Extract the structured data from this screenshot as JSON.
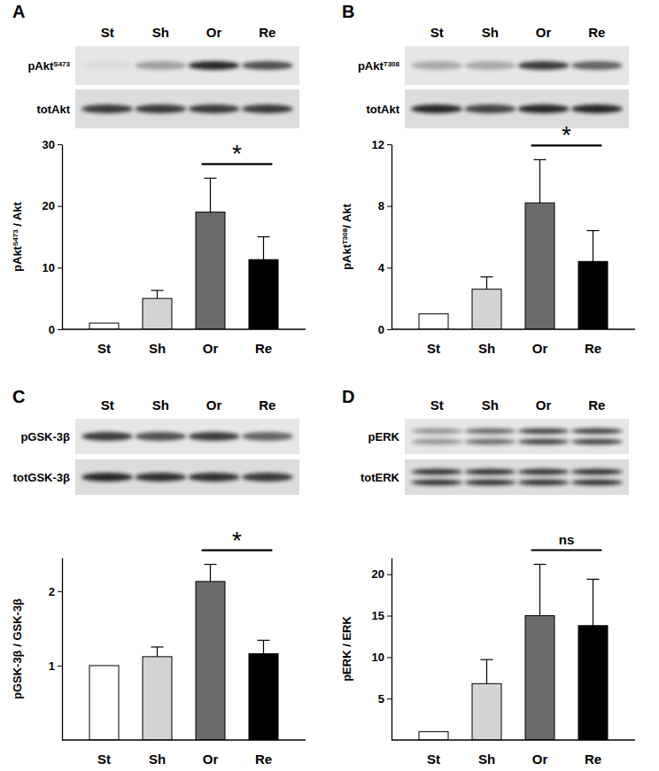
{
  "chart_data": [
    {
      "type": "bar",
      "title": "A",
      "lane_labels": [
        "St",
        "Sh",
        "Or",
        "Re"
      ],
      "blot_labels": [
        {
          "text": "pAkt",
          "sup": "S473"
        },
        {
          "text": "totAkt"
        }
      ],
      "categories": [
        "St",
        "Sh",
        "Or",
        "Re"
      ],
      "values": [
        1,
        5,
        19,
        11.3
      ],
      "errors": [
        null,
        1.3,
        5.5,
        3.7
      ],
      "colors": [
        "#ffffff",
        "#d4d4d4",
        "#6a6a6a",
        "#000000"
      ],
      "ylabel": {
        "text": "pAkt",
        "sup": "S473",
        "rest": " / Akt"
      },
      "ylim": [
        0,
        30
      ],
      "yticks": [
        0,
        10,
        20,
        30
      ],
      "annotation": {
        "text": "*",
        "between": [
          2,
          3
        ]
      }
    },
    {
      "type": "bar",
      "title": "B",
      "lane_labels": [
        "St",
        "Sh",
        "Or",
        "Re"
      ],
      "blot_labels": [
        {
          "text": "pAkt",
          "sup": "T308"
        },
        {
          "text": "totAkt"
        }
      ],
      "categories": [
        "St",
        "Sh",
        "Or",
        "Re"
      ],
      "values": [
        1,
        2.6,
        8.2,
        4.4
      ],
      "errors": [
        null,
        0.8,
        2.8,
        2.0
      ],
      "colors": [
        "#ffffff",
        "#d4d4d4",
        "#6a6a6a",
        "#000000"
      ],
      "ylabel": {
        "text": "pAkt",
        "sup": "T308",
        "rest": "/ Akt"
      },
      "ylim": [
        0,
        12
      ],
      "yticks": [
        0,
        4,
        8,
        12
      ],
      "annotation": {
        "text": "*",
        "between": [
          2,
          3
        ]
      }
    },
    {
      "type": "bar",
      "title": "C",
      "lane_labels": [
        "St",
        "Sh",
        "Or",
        "Re"
      ],
      "blot_labels": [
        {
          "text": "pGSK-3β"
        },
        {
          "text": "totGSK-3β"
        }
      ],
      "categories": [
        "St",
        "Sh",
        "Or",
        "Re"
      ],
      "values": [
        1.0,
        1.12,
        2.13,
        1.16
      ],
      "errors": [
        null,
        0.13,
        0.23,
        0.18
      ],
      "colors": [
        "#ffffff",
        "#d4d4d4",
        "#6a6a6a",
        "#000000"
      ],
      "ylabel": {
        "text": "pGSK-3β / GSK-3β"
      },
      "ylim": [
        0,
        2.45
      ],
      "yticks": [
        1,
        2
      ],
      "annotation": {
        "text": "*",
        "between": [
          2,
          3
        ]
      }
    },
    {
      "type": "bar",
      "title": "D",
      "lane_labels": [
        "St",
        "Sh",
        "Or",
        "Re"
      ],
      "blot_labels": [
        {
          "text": "pERK"
        },
        {
          "text": "totERK"
        }
      ],
      "categories": [
        "St",
        "Sh",
        "Or",
        "Re"
      ],
      "values": [
        1,
        6.8,
        15,
        13.8
      ],
      "errors": [
        null,
        2.9,
        6.2,
        5.6
      ],
      "colors": [
        "#ffffff",
        "#d4d4d4",
        "#6a6a6a",
        "#000000"
      ],
      "ylabel": {
        "text": "pERK / ERK"
      },
      "ylim": [
        0,
        22
      ],
      "yticks": [
        5,
        10,
        15,
        20
      ],
      "annotation": {
        "text": "ns",
        "between": [
          2,
          3
        ]
      }
    }
  ]
}
